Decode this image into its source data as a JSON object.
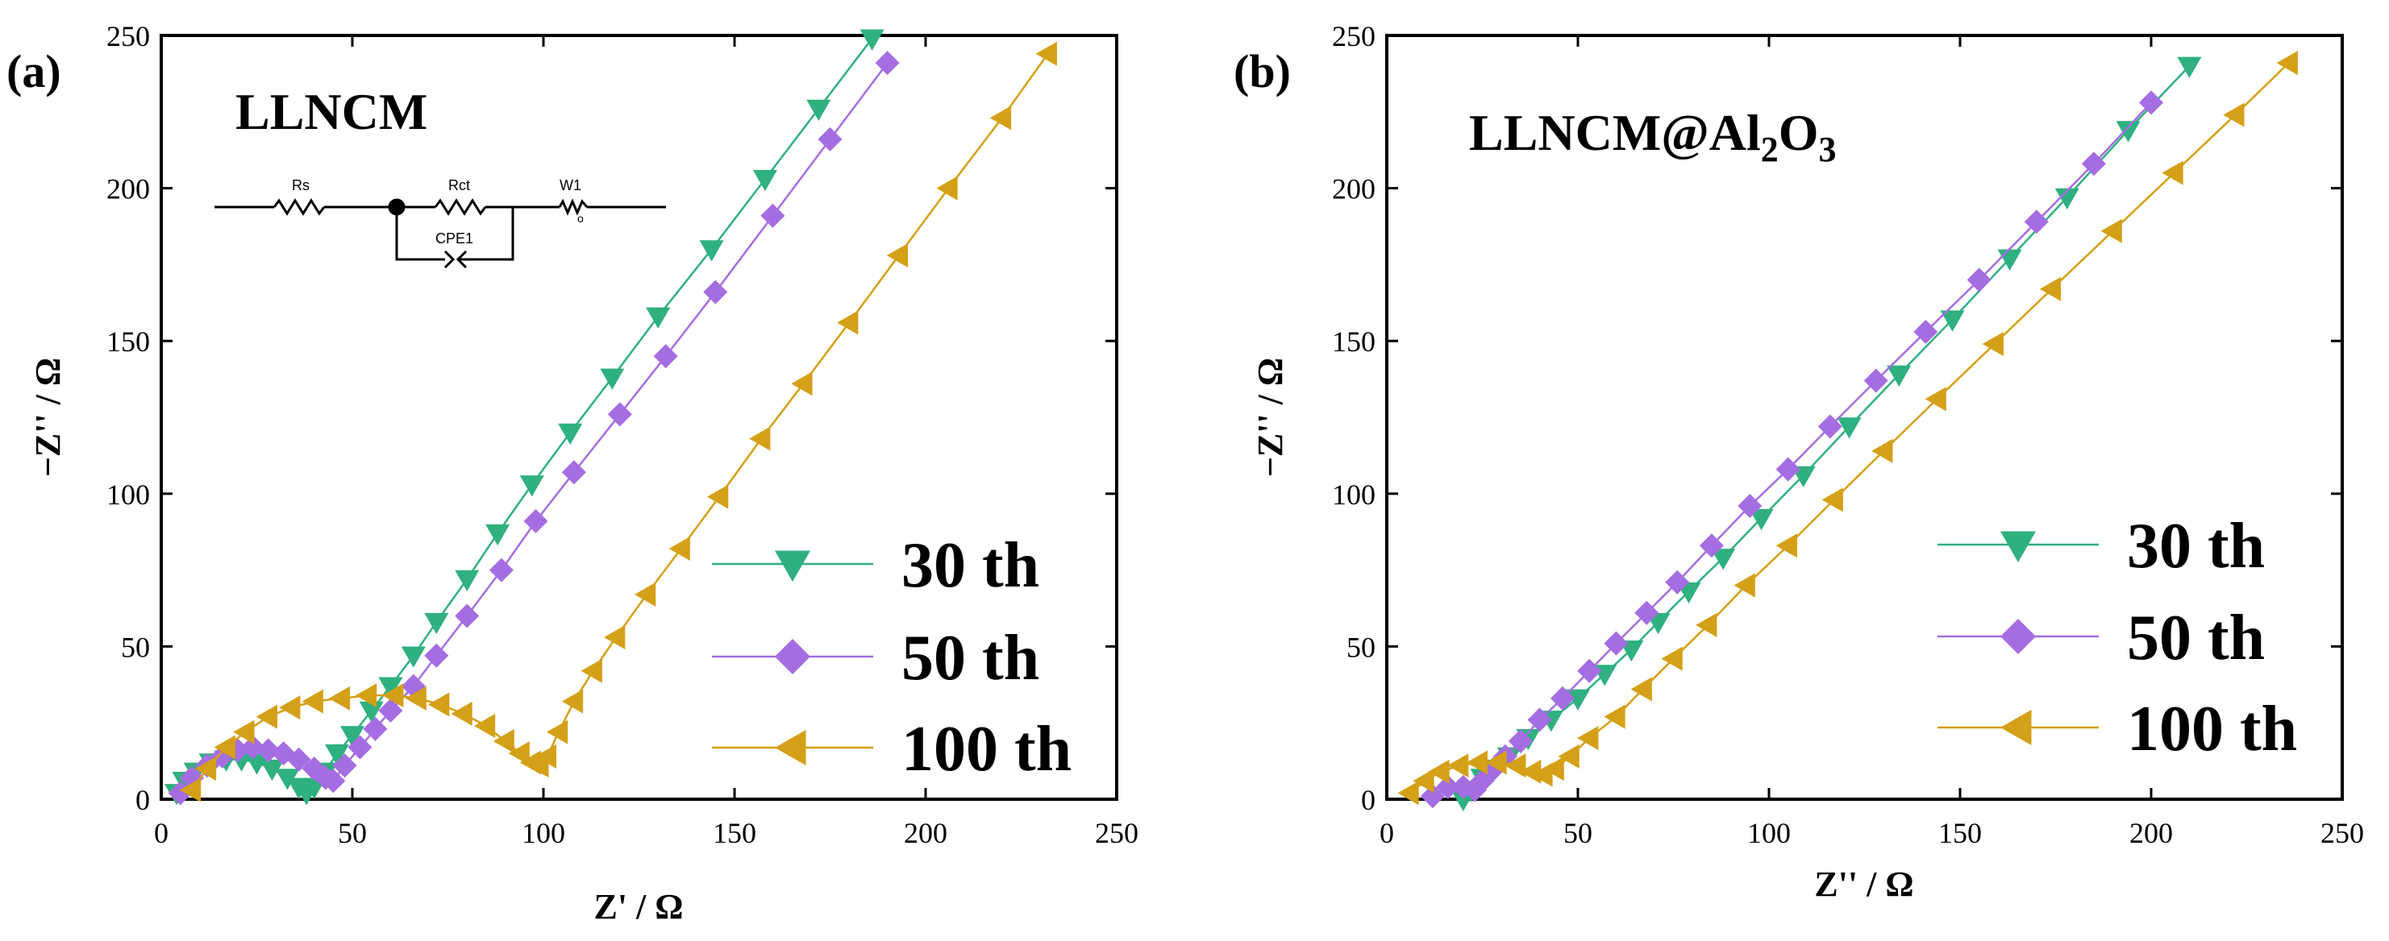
{
  "figure": {
    "colors": {
      "30 th": "#2fb07f",
      "50 th": "#a56de2",
      "100 th": "#d4a017"
    },
    "markers": {
      "30 th": "triangle-down",
      "50 th": "diamond",
      "100 th": "triangle-left"
    }
  },
  "circuit": {
    "labels": [
      "Rs",
      "Rct",
      "W1",
      "CPE1"
    ],
    "w_sub": "o"
  },
  "chart_data": [
    {
      "panel_label": "(a)",
      "sample_label": "LLNCM",
      "type": "line",
      "xlabel": "Z' / Ω",
      "ylabel": "−Z'' / Ω",
      "xlim": [
        0,
        250
      ],
      "ylim": [
        0,
        250
      ],
      "xticks": [
        0,
        50,
        100,
        150,
        200,
        250
      ],
      "yticks": [
        0,
        50,
        100,
        150,
        200,
        250
      ],
      "series": [
        {
          "name": "30 th",
          "x": [
            4,
            6,
            9,
            13,
            17,
            21,
            25,
            29,
            33,
            36,
            38,
            40,
            43,
            46,
            50,
            55,
            60,
            66,
            72,
            80,
            88,
            97,
            107,
            118,
            130,
            144,
            158,
            172,
            186
          ],
          "y": [
            2,
            6,
            9,
            12,
            13,
            13,
            12,
            10,
            7,
            4,
            2,
            4,
            9,
            15,
            21,
            29,
            37,
            47,
            58,
            72,
            87,
            103,
            120,
            138,
            158,
            180,
            203,
            226,
            249
          ]
        },
        {
          "name": "50 th",
          "x": [
            5,
            8,
            12,
            16,
            20,
            24,
            28,
            32,
            36,
            40,
            43,
            45,
            48,
            52,
            56,
            60,
            66,
            72,
            80,
            89,
            98,
            108,
            120,
            132,
            145,
            160,
            175,
            190
          ],
          "y": [
            2,
            7,
            11,
            14,
            16,
            17,
            16,
            15,
            13,
            10,
            7,
            6,
            11,
            17,
            23,
            29,
            37,
            47,
            60,
            75,
            91,
            107,
            126,
            145,
            166,
            191,
            216,
            241
          ]
        },
        {
          "name": "100 th",
          "x": [
            8,
            12,
            17,
            22,
            28,
            34,
            40,
            47,
            54,
            61,
            67,
            73,
            79,
            85,
            90,
            94,
            97,
            99,
            101,
            104,
            108,
            113,
            119,
            127,
            136,
            146,
            157,
            168,
            180,
            193,
            206,
            220,
            232
          ],
          "y": [
            3,
            10,
            17,
            22,
            27,
            30,
            32,
            33,
            34,
            34,
            33,
            31,
            28,
            24,
            19,
            15,
            12,
            11,
            14,
            22,
            32,
            42,
            53,
            67,
            82,
            99,
            118,
            136,
            156,
            178,
            200,
            223,
            244
          ]
        }
      ]
    },
    {
      "panel_label": "(b)",
      "sample_label": "LLNCM@Al",
      "sample_sub1": "2",
      "sample_mid": "O",
      "sample_sub2": "3",
      "type": "line",
      "xlabel": "Z'' / Ω",
      "ylabel": "−Z'' / Ω",
      "xlim": [
        0,
        250
      ],
      "ylim": [
        0,
        250
      ],
      "xticks": [
        0,
        50,
        100,
        150,
        200,
        250
      ],
      "yticks": [
        0,
        50,
        100,
        150,
        200,
        250
      ],
      "series": [
        {
          "name": "30 th",
          "x": [
            20,
            22,
            25,
            28,
            32,
            37,
            43,
            50,
            57,
            64,
            71,
            79,
            88,
            98,
            109,
            121,
            134,
            148,
            163,
            178,
            194,
            210
          ],
          "y": [
            0,
            3,
            7,
            10,
            14,
            20,
            26,
            33,
            41,
            49,
            58,
            68,
            79,
            92,
            106,
            122,
            139,
            157,
            177,
            197,
            219,
            240
          ]
        },
        {
          "name": "50 th",
          "x": [
            12,
            16,
            20,
            23,
            25,
            28,
            31,
            35,
            40,
            46,
            53,
            60,
            68,
            76,
            85,
            95,
            105,
            116,
            128,
            141,
            155,
            170,
            185,
            200
          ],
          "y": [
            1,
            4,
            4,
            3,
            6,
            10,
            14,
            19,
            26,
            33,
            42,
            51,
            61,
            71,
            83,
            96,
            108,
            122,
            137,
            153,
            170,
            189,
            208,
            228
          ]
        },
        {
          "name": "100 th",
          "x": [
            6,
            10,
            14,
            19,
            24,
            29,
            34,
            38,
            41,
            44,
            48,
            53,
            60,
            67,
            75,
            84,
            94,
            105,
            117,
            130,
            144,
            159,
            174,
            190,
            206,
            222,
            236
          ],
          "y": [
            2,
            6,
            9,
            11,
            12,
            12,
            11,
            9,
            8,
            10,
            14,
            20,
            27,
            36,
            46,
            57,
            70,
            83,
            98,
            114,
            131,
            149,
            167,
            186,
            205,
            224,
            241
          ]
        }
      ]
    }
  ]
}
